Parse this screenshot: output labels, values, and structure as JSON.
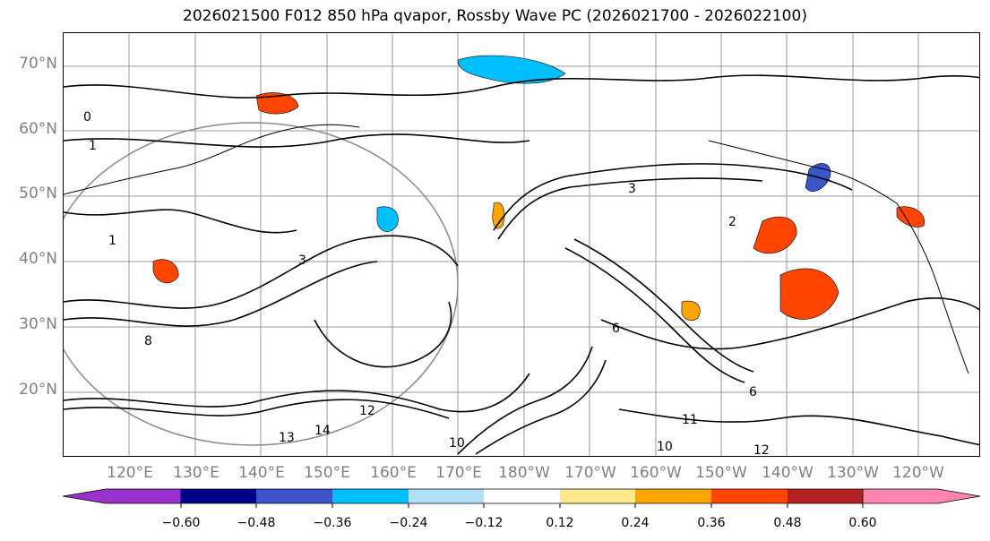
{
  "title": "2026021500 F012 850 hPa qvapor, Rossby Wave PC (2026021700 - 2026022100)",
  "map": {
    "lat_labels": [
      "70°N",
      "60°N",
      "50°N",
      "40°N",
      "30°N",
      "20°N"
    ],
    "lon_labels": [
      "120°E",
      "130°E",
      "140°E",
      "150°E",
      "160°E",
      "170°E",
      "180°W",
      "170°W",
      "160°W",
      "150°W",
      "140°W",
      "130°W",
      "120°W"
    ],
    "contour_labels": [
      "0",
      "1",
      "1",
      "2",
      "3",
      "3",
      "6",
      "6",
      "8",
      "10",
      "10",
      "11",
      "12",
      "12",
      "13",
      "14"
    ]
  },
  "colorbar": {
    "tick_labels": [
      "−0.60",
      "−0.48",
      "−0.36",
      "−0.24",
      "−0.12",
      "0.12",
      "0.24",
      "0.36",
      "0.48",
      "0.60"
    ],
    "colors": [
      "#9932cc",
      "#00008b",
      "#3a55c9",
      "#00bfff",
      "#b0e0f8",
      "#ffffff",
      "#ffe98a",
      "#ffa500",
      "#ff4500",
      "#b22222",
      "#ff85b0"
    ]
  },
  "colors": {
    "grid": "#9a9a9a",
    "contour": "#000000",
    "coast": "#000000",
    "axis_label": "#808080"
  }
}
